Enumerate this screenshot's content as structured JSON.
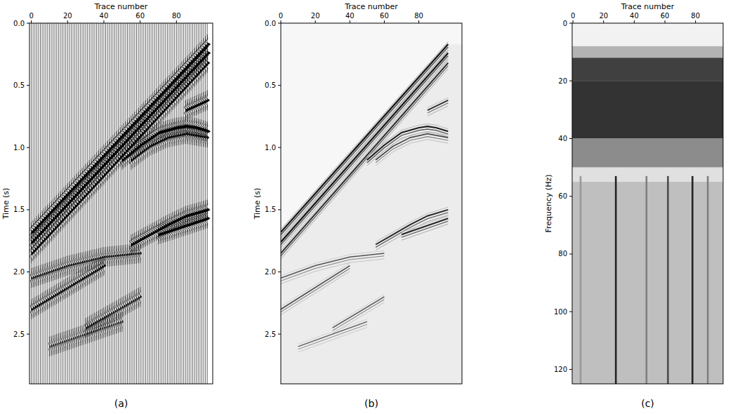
{
  "chart_data": [
    {
      "type": "seismic_wiggle",
      "caption": "(a)",
      "xlabel": "Trace number",
      "ylabel": "Time (s)",
      "xlim": [
        -1,
        100
      ],
      "xticks": [
        0,
        20,
        40,
        60,
        80
      ],
      "ylim": [
        0,
        2.9
      ],
      "yticks": [
        {
          "value": 0,
          "label": "0.0"
        },
        0.5,
        {
          "value": 1,
          "label": "1.0"
        },
        1.5,
        {
          "value": 2,
          "label": "2.0"
        },
        2.5
      ],
      "trace_count": 98,
      "events": [
        {
          "traces": [
            0,
            97
          ],
          "times": [
            1.68,
            0.17
          ],
          "amplitude": 1
        },
        {
          "traces": [
            0,
            97
          ],
          "times": [
            1.76,
            0.24
          ],
          "amplitude": 1
        },
        {
          "traces": [
            0,
            97
          ],
          "times": [
            1.85,
            0.32
          ],
          "amplitude": 0.8
        },
        {
          "traces": [
            50,
            60,
            70,
            80,
            85,
            90,
            97
          ],
          "times": [
            1.1,
            0.98,
            0.88,
            0.84,
            0.83,
            0.84,
            0.87
          ],
          "amplitude": 0.9
        },
        {
          "traces": [
            55,
            65,
            75,
            85,
            97
          ],
          "times": [
            1.1,
            0.99,
            0.92,
            0.89,
            0.92
          ],
          "amplitude": 0.5
        },
        {
          "traces": [
            55,
            65,
            75,
            85,
            97
          ],
          "times": [
            1.78,
            1.7,
            1.62,
            1.55,
            1.5
          ],
          "amplitude": 0.8
        },
        {
          "traces": [
            70,
            97
          ],
          "times": [
            1.7,
            1.57
          ],
          "amplitude": 0.8
        },
        {
          "traces": [
            85,
            97
          ],
          "times": [
            0.7,
            0.62
          ],
          "amplitude": 0.7
        },
        {
          "traces": [
            0,
            20,
            40,
            60
          ],
          "times": [
            2.05,
            1.95,
            1.88,
            1.85
          ],
          "amplitude": 0.4
        },
        {
          "traces": [
            0,
            40
          ],
          "times": [
            2.3,
            1.95
          ],
          "amplitude": 0.5
        },
        {
          "traces": [
            30,
            60
          ],
          "times": [
            2.45,
            2.2
          ],
          "amplitude": 0.4
        },
        {
          "traces": [
            10,
            50
          ],
          "times": [
            2.6,
            2.4
          ],
          "amplitude": 0.3
        }
      ]
    },
    {
      "type": "image",
      "caption": "(b)",
      "xlabel": "Trace number",
      "ylabel": "Time (s)",
      "xlim": [
        0,
        105
      ],
      "xticks": [
        0,
        20,
        40,
        60,
        80
      ],
      "ylim": [
        0,
        2.9
      ],
      "yticks": [
        {
          "value": 0,
          "label": "0.0"
        },
        0.5,
        {
          "value": 1,
          "label": "1.0"
        },
        1.5,
        {
          "value": 2,
          "label": "2.0"
        },
        2.5
      ]
    },
    {
      "type": "image",
      "caption": "(c)",
      "xlabel": "Trace number",
      "ylabel": "Frequency (Hz)",
      "xlim": [
        -0.5,
        98
      ],
      "xticks": [
        0,
        20,
        40,
        60,
        80
      ],
      "ylim": [
        0,
        125
      ],
      "yticks": [
        0,
        20,
        40,
        60,
        80,
        100,
        120
      ],
      "bands": [
        {
          "fmin": 0,
          "fmax": 8,
          "shade": 0.05
        },
        {
          "fmin": 8,
          "fmax": 12,
          "shade": 0.3
        },
        {
          "fmin": 12,
          "fmax": 20,
          "shade": 0.75
        },
        {
          "fmin": 20,
          "fmax": 40,
          "shade": 0.8
        },
        {
          "fmin": 40,
          "fmax": 50,
          "shade": 0.45
        },
        {
          "fmin": 50,
          "fmax": 55,
          "shade": 0.12
        },
        {
          "fmin": 55,
          "fmax": 125,
          "shade": 0.25
        }
      ],
      "stripes": [
        {
          "trace": 5,
          "fmin": 53,
          "fmax": 125,
          "shade": 0.4
        },
        {
          "trace": 28,
          "fmin": 53,
          "fmax": 125,
          "shade": 0.85
        },
        {
          "trace": 48,
          "fmin": 53,
          "fmax": 125,
          "shade": 0.5
        },
        {
          "trace": 62,
          "fmin": 53,
          "fmax": 125,
          "shade": 0.7
        },
        {
          "trace": 78,
          "fmin": 53,
          "fmax": 125,
          "shade": 0.85
        },
        {
          "trace": 88,
          "fmin": 53,
          "fmax": 125,
          "shade": 0.5
        }
      ]
    }
  ]
}
